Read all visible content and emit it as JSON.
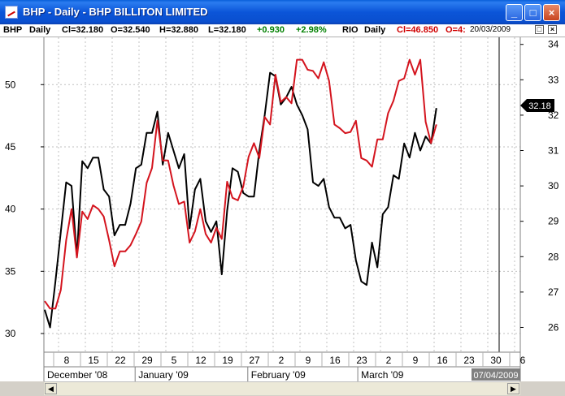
{
  "window": {
    "title": "BHP - Daily - BHP BILLITON LIMITED",
    "minimize_glyph": "_",
    "maximize_glyph": "□",
    "close_glyph": "×"
  },
  "infobar": {
    "symbol1": "BHP",
    "period1": "Daily",
    "close1": "Cl=32.180",
    "open1": "O=32.540",
    "high1": "H=32.880",
    "low1": "L=32.180",
    "change": "+0.930",
    "change_pct": "+2.98%",
    "symbol2": "RIO",
    "period2": "Daily",
    "close2": "Cl=46.850",
    "open2_fragment": "O=4:",
    "date": "20/03/2009",
    "restore_glyph": "□",
    "close_glyph": "×"
  },
  "colors": {
    "bhp": "#000000",
    "rio": "#d4141e",
    "positive": "#008000",
    "rio_text": "#d00000",
    "grid": "#c0c0c0"
  },
  "chart_data": {
    "type": "line",
    "left_axis": {
      "ticks": [
        30,
        35,
        40,
        45,
        50
      ],
      "ylim": [
        28.5,
        53.8
      ]
    },
    "right_axis": {
      "ticks": [
        26,
        27,
        28,
        29,
        30,
        31,
        32,
        33,
        34
      ],
      "ylim": [
        25.3,
        34.2
      ]
    },
    "x_tick_labels": [
      "8",
      "15",
      "22",
      "29",
      "5",
      "12",
      "19",
      "27",
      "2",
      "9",
      "16",
      "23",
      "2",
      "9",
      "16",
      "23",
      "30",
      "6"
    ],
    "months": [
      "December '08",
      "January '09",
      "February '09",
      "March '09"
    ],
    "last_value_label": "32.18",
    "end_date_label": "07/04/2009",
    "series": [
      {
        "name": "BHP",
        "axis": "right",
        "values": [
          26.5,
          26.0,
          27.3,
          28.7,
          30.1,
          30.0,
          28.0,
          30.7,
          30.5,
          30.8,
          30.8,
          29.9,
          29.7,
          28.6,
          28.9,
          28.9,
          29.5,
          30.5,
          30.6,
          31.5,
          31.5,
          32.1,
          30.6,
          31.5,
          31.0,
          30.5,
          30.9,
          28.8,
          29.9,
          30.2,
          29.0,
          28.7,
          29.0,
          27.5,
          29.3,
          30.5,
          30.4,
          29.8,
          29.7,
          29.7,
          31.0,
          32.0,
          33.2,
          33.1,
          32.3,
          32.5,
          32.8,
          32.3,
          32.0,
          31.6,
          30.1,
          30.0,
          30.2,
          29.4,
          29.1,
          29.1,
          28.8,
          28.9,
          27.9,
          27.3,
          27.2,
          28.4,
          27.7,
          29.2,
          29.4,
          30.3,
          30.2,
          31.2,
          30.8,
          31.5,
          31.0,
          31.4,
          31.2,
          32.2
        ]
      },
      {
        "name": "RIO",
        "axis": "left",
        "values": [
          32.6,
          32.0,
          32.0,
          33.5,
          37.5,
          40.0,
          36.1,
          39.8,
          39.2,
          40.3,
          40.0,
          39.4,
          37.5,
          35.4,
          36.6,
          36.6,
          37.1,
          38.0,
          39.0,
          42.1,
          43.3,
          47.1,
          43.9,
          43.9,
          41.9,
          40.4,
          40.6,
          37.3,
          38.2,
          40.0,
          38.0,
          37.3,
          38.5,
          37.6,
          42.2,
          40.9,
          40.7,
          41.8,
          44.2,
          45.3,
          44.1,
          47.4,
          46.8,
          50.8,
          48.6,
          49.0,
          48.5,
          52.0,
          52.0,
          51.2,
          51.1,
          50.5,
          51.8,
          50.3,
          46.8,
          46.5,
          46.1,
          46.2,
          47.1,
          44.1,
          43.9,
          43.4,
          45.6,
          45.6,
          47.7,
          48.7,
          50.3,
          50.5,
          52.0,
          50.8,
          52.0,
          47.0,
          45.3,
          46.8
        ]
      }
    ]
  }
}
